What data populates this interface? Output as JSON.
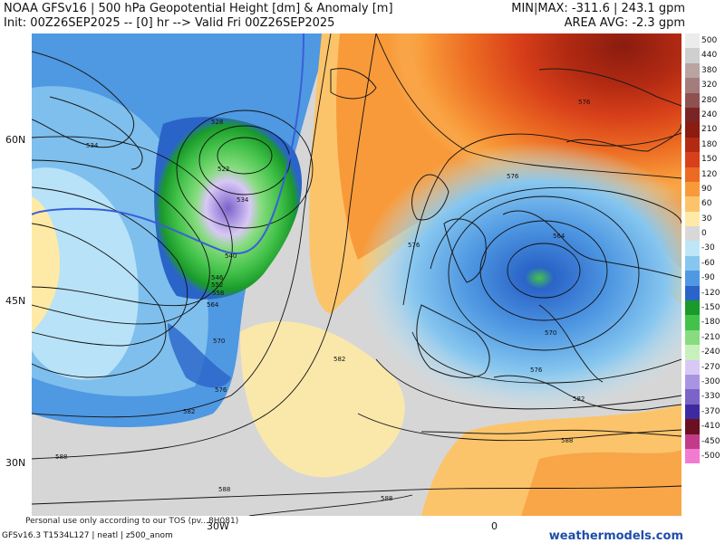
{
  "header": {
    "title_line1": "NOAA GFSv16 | 500 hPa Geopotential Height [dm] & Anomaly [m]",
    "title_line2": "Init: 00Z26SEP2025 -- [0] hr --> Valid Fri 00Z26SEP2025",
    "minmax": "MIN|MAX: -311.6 | 243.1 gpm",
    "area_avg": "AREA AVG: -2.3 gpm"
  },
  "map": {
    "latitude_labels": [
      "60N",
      "45N",
      "30N"
    ],
    "longitude_labels": [
      "30W",
      "0"
    ],
    "contour_labels": [
      "534",
      "528",
      "522",
      "534",
      "540",
      "546",
      "552",
      "558",
      "564",
      "570",
      "576",
      "582",
      "588",
      "582",
      "588",
      "576",
      "576",
      "570",
      "564",
      "576",
      "582",
      "588",
      "588",
      "576"
    ],
    "colors": {
      "land_outline": "#1a1a1a",
      "contour": "#111111",
      "cutoff_line": "#3a5fd8"
    }
  },
  "colorbar": {
    "labels": [
      "500",
      "440",
      "380",
      "320",
      "280",
      "240",
      "210",
      "180",
      "150",
      "120",
      "90",
      "60",
      "30",
      "0",
      "-30",
      "-60",
      "-90",
      "-120",
      "-150",
      "-180",
      "-210",
      "-240",
      "-270",
      "-300",
      "-330",
      "-370",
      "-410",
      "-450",
      "-500"
    ],
    "colors": [
      "#ececec",
      "#cfcfcf",
      "#b9a3a3",
      "#a57c7c",
      "#8f5050",
      "#7a2424",
      "#8a1c10",
      "#b22a12",
      "#d8401a",
      "#ec6a22",
      "#f89a3a",
      "#fcc46a",
      "#feeaa6",
      "#d8d8d8",
      "#bfe6f7",
      "#86c6ef",
      "#4f98e2",
      "#2a64c8",
      "#1a9a2a",
      "#43c24a",
      "#86dc7e",
      "#c8f0bc",
      "#d8c8f4",
      "#a994e2",
      "#7a64c8",
      "#3e2aa0",
      "#6a1020",
      "#c23a8a",
      "#f27ad0"
    ]
  },
  "footer": {
    "model": "GFSv16.3 T1534L127 | neatl | z500_anom",
    "notice": "Personal use only according to our TOS (pv...8H081)",
    "brand": "weathermodels.com"
  }
}
